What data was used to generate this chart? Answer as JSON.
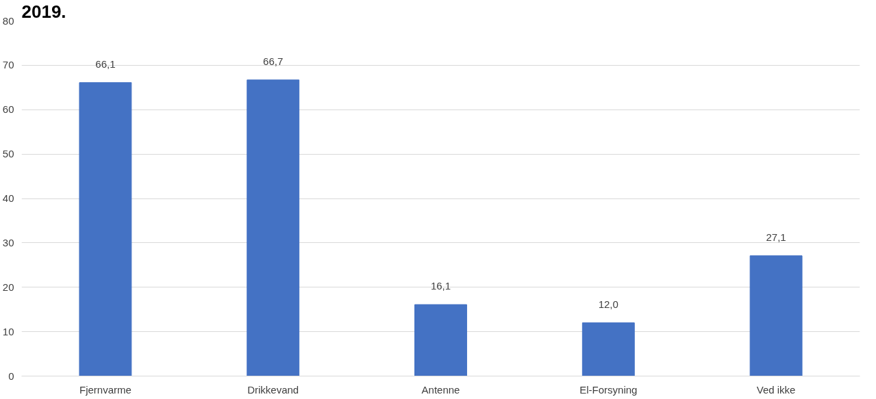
{
  "chart_data": {
    "type": "bar",
    "title": "2019.",
    "categories": [
      "Fjernvarme",
      "Drikkevand",
      "Antenne",
      "El-Forsyning",
      "Ved ikke"
    ],
    "values": [
      66.1,
      66.7,
      16.1,
      12.0,
      27.1
    ],
    "value_labels": [
      "66,1",
      "66,7",
      "16,1",
      "12,0",
      "27,1"
    ],
    "color": "#4472c4",
    "ylim": [
      0,
      80
    ],
    "yticks": [
      0,
      10,
      20,
      30,
      40,
      50,
      60,
      70,
      80
    ],
    "grid": "y"
  }
}
